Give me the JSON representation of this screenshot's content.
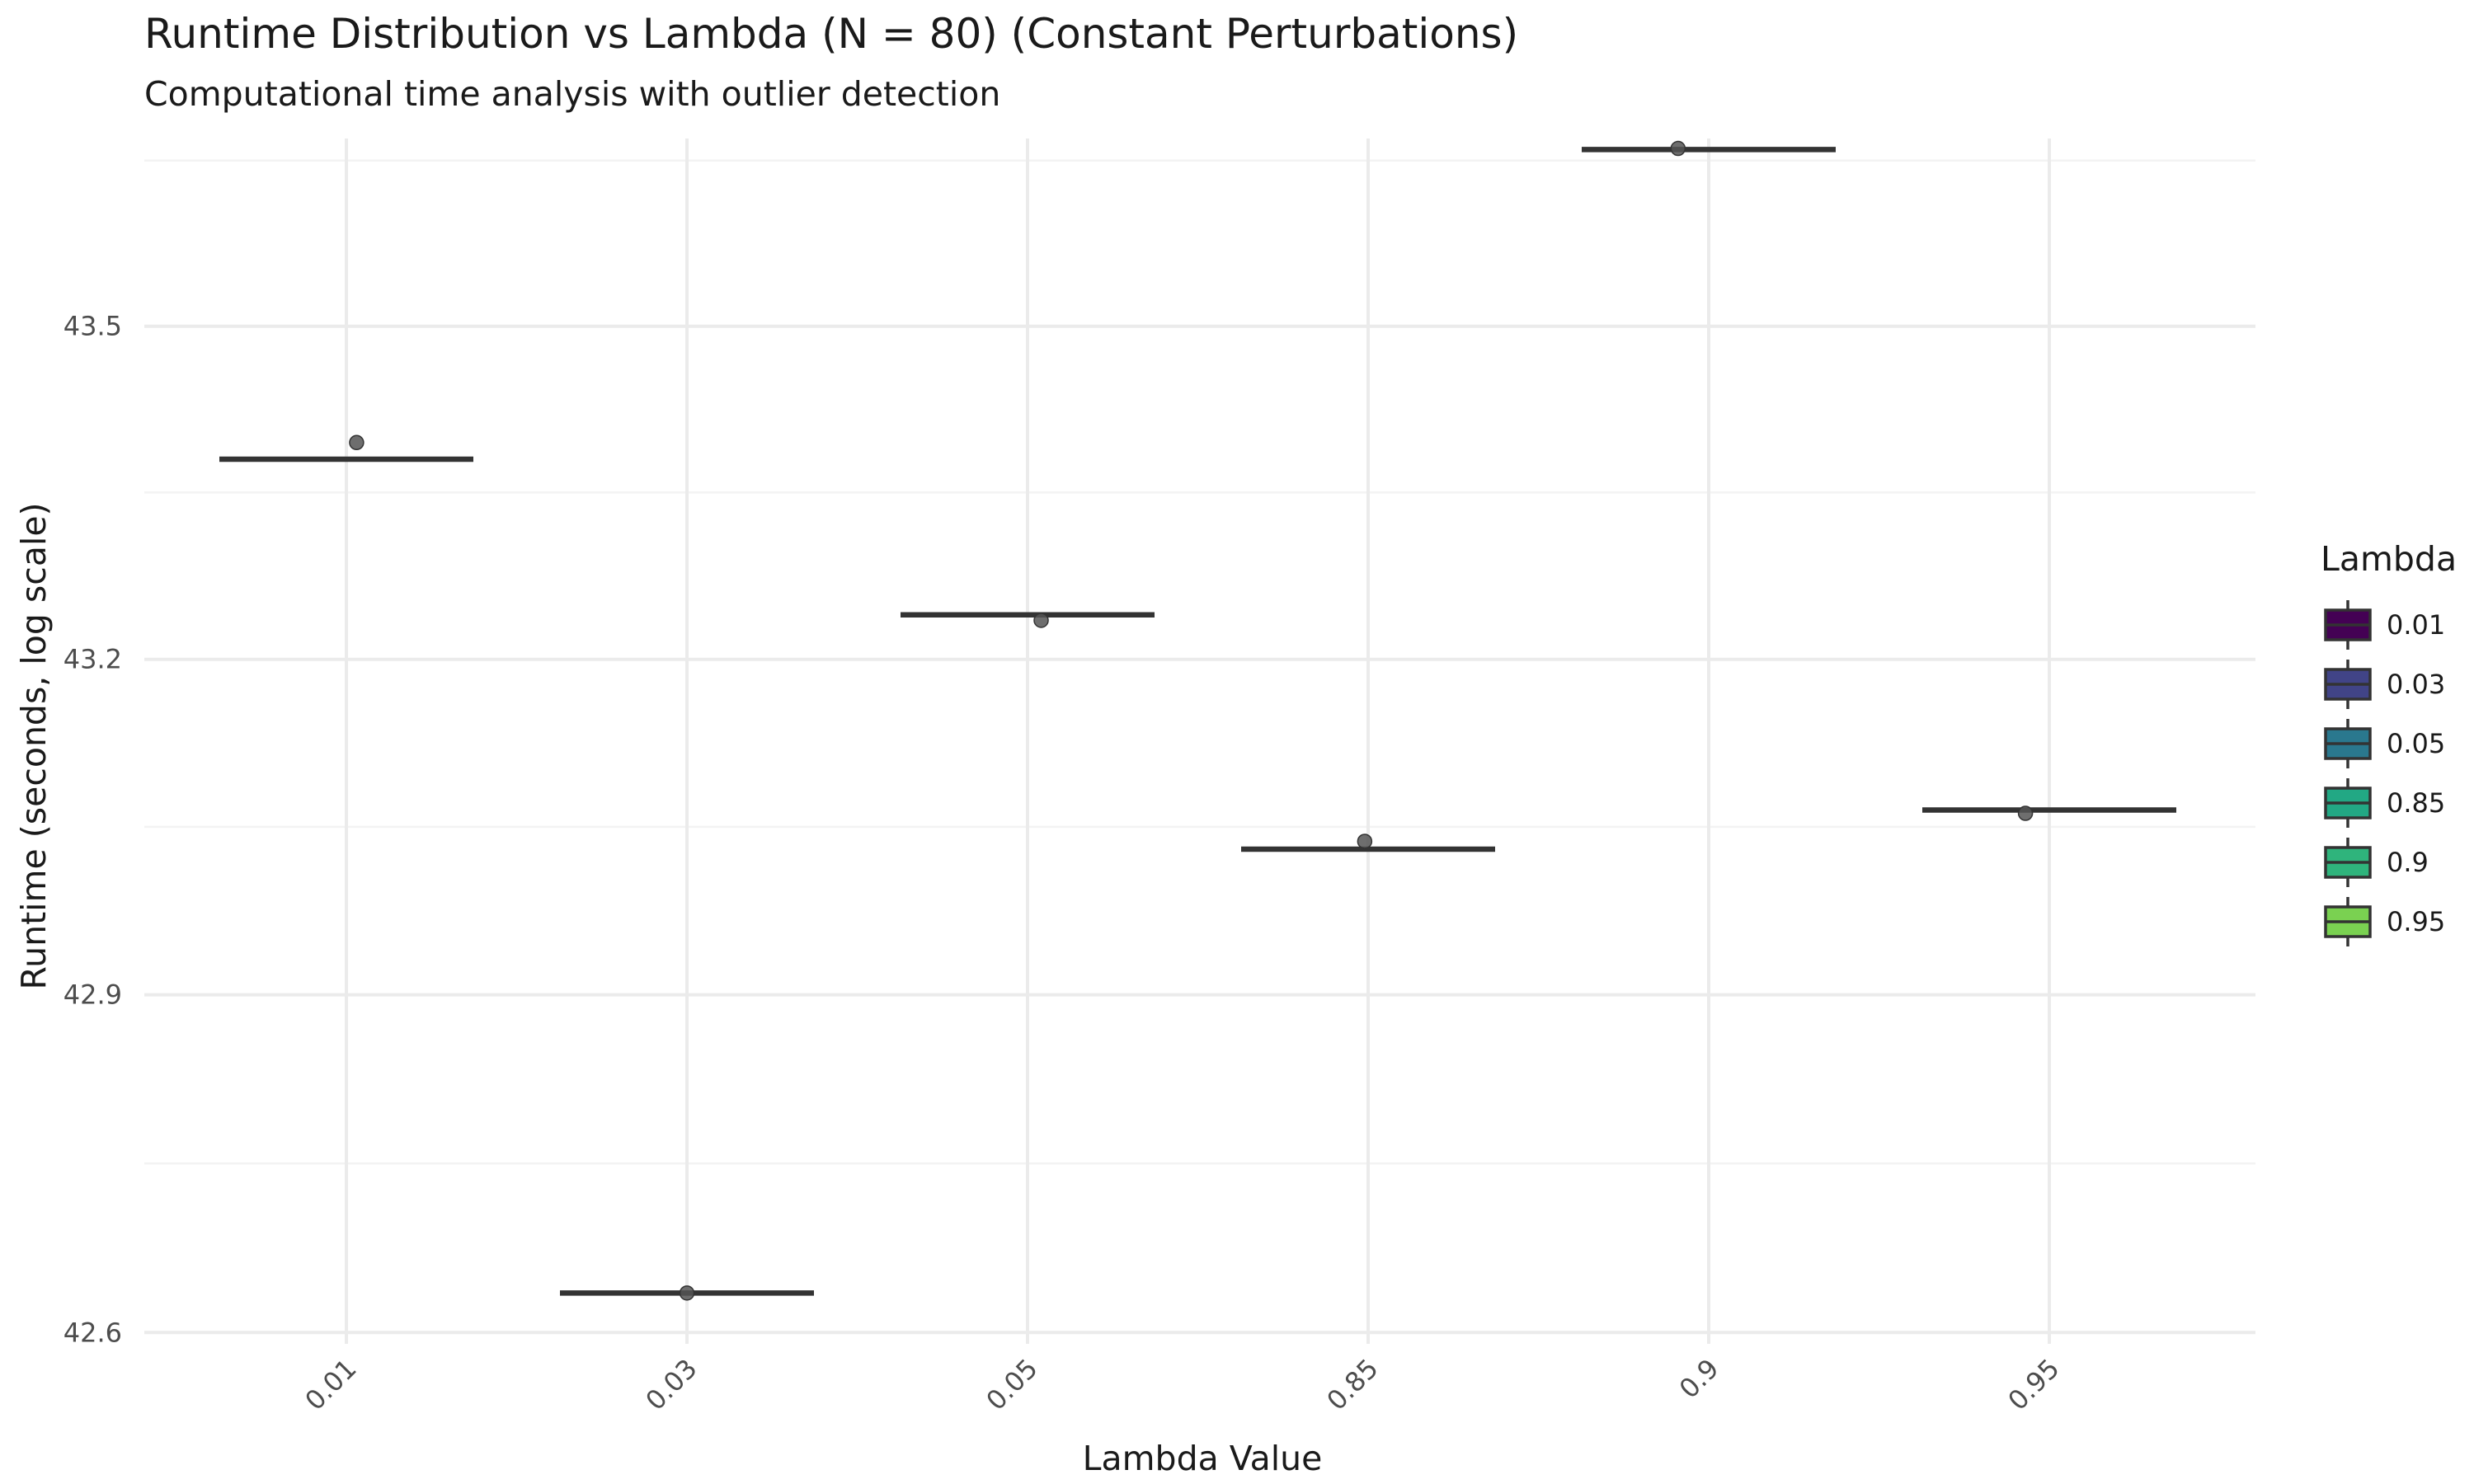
{
  "chart_data": {
    "type": "box",
    "title": "Runtime Distribution vs Lambda (N = 80) (Constant Perturbations)",
    "subtitle": "Computational time analysis with outlier detection",
    "xlabel": "Lambda Value",
    "ylabel": "Runtime (seconds, log scale)",
    "y_scale": "log",
    "ylim": [
      42.59,
      43.67
    ],
    "y_ticks": [
      42.6,
      42.9,
      43.2,
      43.5
    ],
    "y_tick_labels": [
      "42.6",
      "42.9",
      "43.2",
      "43.5"
    ],
    "categories": [
      "0.01",
      "0.03",
      "0.05",
      "0.85",
      "0.9",
      "0.95"
    ],
    "medians": [
      43.38,
      42.635,
      43.24,
      43.03,
      43.66,
      43.065
    ],
    "points": [
      {
        "category": "0.01",
        "jitter": 0.03,
        "y": 43.395
      },
      {
        "category": "0.03",
        "jitter": 0.0,
        "y": 42.635
      },
      {
        "category": "0.05",
        "jitter": 0.04,
        "y": 43.235
      },
      {
        "category": "0.85",
        "jitter": -0.01,
        "y": 43.037
      },
      {
        "category": "0.9",
        "jitter": -0.09,
        "y": 43.661
      },
      {
        "category": "0.95",
        "jitter": -0.07,
        "y": 43.062
      }
    ],
    "legend": {
      "title": "Lambda",
      "position": "right",
      "entries": [
        {
          "label": "0.01",
          "color": "#440154"
        },
        {
          "label": "0.03",
          "color": "#414487"
        },
        {
          "label": "0.05",
          "color": "#2a788e"
        },
        {
          "label": "0.85",
          "color": "#22a884"
        },
        {
          "label": "0.9",
          "color": "#2fb47c"
        },
        {
          "label": "0.95",
          "color": "#7ad151"
        }
      ]
    },
    "grid": true,
    "colors": {
      "median_line": "#333333",
      "point": "#555555",
      "grid": "#ebebeb"
    }
  }
}
